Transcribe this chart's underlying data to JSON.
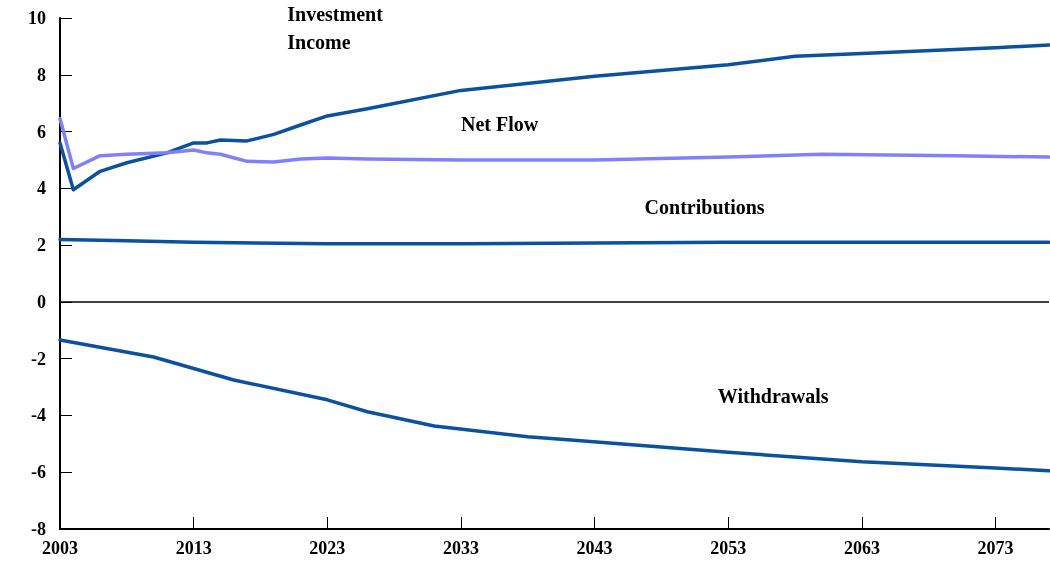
{
  "chart_data": {
    "type": "line",
    "xlim": [
      2003,
      2077
    ],
    "xticks": [
      2003,
      2013,
      2023,
      2033,
      2043,
      2053,
      2063,
      2073
    ],
    "ylim": [
      -8,
      10
    ],
    "yticks": [
      -8,
      -6,
      -4,
      -2,
      0,
      2,
      4,
      6,
      8,
      10
    ],
    "grid": false,
    "legend": false,
    "marker": "none",
    "line_style": "solid",
    "ref_lines": [
      {
        "axis": "y",
        "value": 0,
        "color": "#000000"
      }
    ],
    "series": [
      {
        "name": "Investment Income",
        "color": "#0a52a0",
        "x": [
          2003,
          2004,
          2006,
          2008,
          2011,
          2013,
          2014,
          2015,
          2017,
          2019,
          2021,
          2023,
          2026,
          2033,
          2043,
          2053,
          2058,
          2063,
          2073,
          2077
        ],
        "values": [
          5.6,
          3.95,
          4.6,
          4.9,
          5.25,
          5.6,
          5.6,
          5.7,
          5.67,
          5.9,
          6.23,
          6.55,
          6.8,
          7.45,
          7.95,
          8.35,
          8.65,
          8.75,
          8.95,
          9.05
        ]
      },
      {
        "name": "Net Flow",
        "color": "#8080ff",
        "x": [
          2003,
          2004,
          2006,
          2008,
          2011,
          2013,
          2014,
          2015,
          2017,
          2019,
          2021,
          2023,
          2026,
          2033,
          2043,
          2053,
          2060,
          2070,
          2077
        ],
        "values": [
          6.45,
          4.7,
          5.15,
          5.2,
          5.25,
          5.35,
          5.25,
          5.2,
          4.95,
          4.93,
          5.03,
          5.07,
          5.03,
          5.0,
          5.0,
          5.1,
          5.2,
          5.15,
          5.1
        ]
      },
      {
        "name": "Contributions",
        "color": "#0a52a0",
        "x": [
          2003,
          2008,
          2013,
          2023,
          2033,
          2043,
          2053,
          2063,
          2077
        ],
        "values": [
          2.2,
          2.15,
          2.1,
          2.05,
          2.05,
          2.07,
          2.1,
          2.1,
          2.1
        ]
      },
      {
        "name": "Withdrawals",
        "color": "#0a52a0",
        "x": [
          2003,
          2010,
          2016,
          2023,
          2026,
          2031,
          2038,
          2041,
          2053,
          2063,
          2073,
          2077
        ],
        "values": [
          -1.34,
          -1.94,
          -2.75,
          -3.45,
          -3.87,
          -4.37,
          -4.75,
          -4.86,
          -5.3,
          -5.63,
          -5.85,
          -5.95
        ]
      }
    ]
  }
}
